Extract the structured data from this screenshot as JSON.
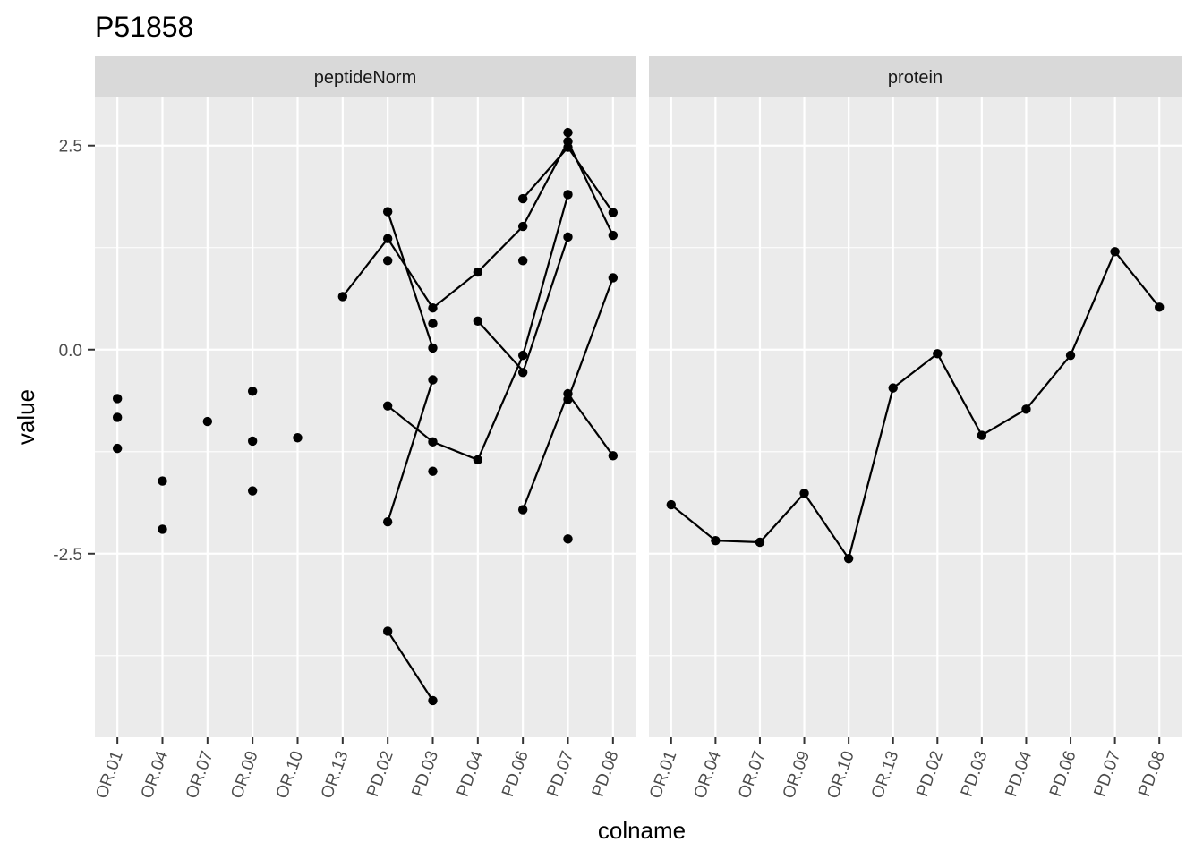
{
  "chart_data": {
    "type": "line",
    "title": "P51858",
    "xlabel": "colname",
    "ylabel": "value",
    "ylim": [
      -4.75,
      3.1
    ],
    "y_ticks": [
      -2.5,
      0.0,
      2.5
    ],
    "y_tick_labels": [
      "-2.5",
      "0.0",
      "2.5"
    ],
    "grid": true,
    "background": "#ebebeb",
    "strip_fill": "#d9d9d9",
    "mark_color": "#000000",
    "categories": [
      "OR.01",
      "OR.04",
      "OR.07",
      "OR.09",
      "OR.10",
      "OR.13",
      "PD.02",
      "PD.03",
      "PD.04",
      "PD.06",
      "PD.07",
      "PD.08"
    ],
    "panels": [
      {
        "name": "peptideNorm",
        "series": [
          {
            "values": [
              null,
              null,
              null,
              null,
              null,
              0.65,
              1.36,
              0.51,
              0.95,
              1.51,
              2.55,
              1.4
            ]
          },
          {
            "values": [
              null,
              null,
              null,
              null,
              null,
              null,
              1.69,
              0.02,
              null,
              null,
              null,
              null
            ]
          },
          {
            "values": [
              null,
              null,
              null,
              null,
              null,
              null,
              -0.69,
              -1.13,
              -1.35,
              -0.07,
              1.9,
              null
            ]
          },
          {
            "values": [
              null,
              null,
              null,
              null,
              null,
              null,
              -2.11,
              -0.37,
              null,
              null,
              null,
              null
            ]
          },
          {
            "values": [
              null,
              null,
              null,
              null,
              null,
              null,
              -3.45,
              -4.3,
              null,
              null,
              null,
              null
            ]
          },
          {
            "values": [
              null,
              null,
              null,
              null,
              null,
              null,
              null,
              null,
              0.35,
              -0.26,
              null,
              null
            ]
          },
          {
            "values": [
              null,
              null,
              null,
              null,
              null,
              null,
              null,
              null,
              null,
              1.85,
              2.48,
              1.68
            ]
          },
          {
            "values": [
              null,
              null,
              null,
              null,
              null,
              null,
              null,
              null,
              null,
              -0.28,
              1.38,
              null
            ]
          },
          {
            "values": [
              null,
              null,
              null,
              null,
              null,
              null,
              null,
              null,
              null,
              -1.96,
              -0.54,
              -1.3
            ]
          },
          {
            "values": [
              null,
              null,
              null,
              null,
              null,
              null,
              null,
              null,
              null,
              null,
              -0.61,
              0.88
            ]
          }
        ],
        "points": [
          {
            "x": "OR.01",
            "y": -0.6
          },
          {
            "x": "OR.01",
            "y": -0.83
          },
          {
            "x": "OR.01",
            "y": -1.21
          },
          {
            "x": "OR.04",
            "y": -1.61
          },
          {
            "x": "OR.04",
            "y": -2.2
          },
          {
            "x": "OR.07",
            "y": -0.88
          },
          {
            "x": "OR.09",
            "y": -0.51
          },
          {
            "x": "OR.09",
            "y": -1.12
          },
          {
            "x": "OR.09",
            "y": -1.73
          },
          {
            "x": "OR.10",
            "y": -1.08
          },
          {
            "x": "OR.13",
            "y": 0.65
          },
          {
            "x": "PD.02",
            "y": 1.69
          },
          {
            "x": "PD.02",
            "y": 1.36
          },
          {
            "x": "PD.02",
            "y": 1.09
          },
          {
            "x": "PD.02",
            "y": -0.69
          },
          {
            "x": "PD.02",
            "y": -2.11
          },
          {
            "x": "PD.02",
            "y": -3.45
          },
          {
            "x": "PD.03",
            "y": 0.51
          },
          {
            "x": "PD.03",
            "y": 0.32
          },
          {
            "x": "PD.03",
            "y": 0.02
          },
          {
            "x": "PD.03",
            "y": -0.37
          },
          {
            "x": "PD.03",
            "y": -1.13
          },
          {
            "x": "PD.03",
            "y": -1.49
          },
          {
            "x": "PD.03",
            "y": -4.3
          },
          {
            "x": "PD.04",
            "y": 0.95
          },
          {
            "x": "PD.04",
            "y": 0.35
          },
          {
            "x": "PD.04",
            "y": -1.35
          },
          {
            "x": "PD.06",
            "y": 1.85
          },
          {
            "x": "PD.06",
            "y": 1.51
          },
          {
            "x": "PD.06",
            "y": 1.09
          },
          {
            "x": "PD.06",
            "y": -0.07
          },
          {
            "x": "PD.06",
            "y": -0.28
          },
          {
            "x": "PD.06",
            "y": -1.96
          },
          {
            "x": "PD.07",
            "y": 2.66
          },
          {
            "x": "PD.07",
            "y": 2.55
          },
          {
            "x": "PD.07",
            "y": 2.48
          },
          {
            "x": "PD.07",
            "y": 1.9
          },
          {
            "x": "PD.07",
            "y": 1.38
          },
          {
            "x": "PD.07",
            "y": -0.54
          },
          {
            "x": "PD.07",
            "y": -0.61
          },
          {
            "x": "PD.07",
            "y": -2.32
          },
          {
            "x": "PD.08",
            "y": 1.68
          },
          {
            "x": "PD.08",
            "y": 1.4
          },
          {
            "x": "PD.08",
            "y": 0.88
          },
          {
            "x": "PD.08",
            "y": -1.3
          }
        ]
      },
      {
        "name": "protein",
        "series": [
          {
            "values": [
              -1.9,
              -2.34,
              -2.36,
              -1.76,
              -2.56,
              -0.47,
              -0.05,
              -1.05,
              -0.73,
              -0.07,
              1.2,
              0.52
            ]
          }
        ],
        "points": [
          {
            "x": "OR.01",
            "y": -1.9
          },
          {
            "x": "OR.04",
            "y": -2.34
          },
          {
            "x": "OR.07",
            "y": -2.36
          },
          {
            "x": "OR.09",
            "y": -1.76
          },
          {
            "x": "OR.10",
            "y": -2.56
          },
          {
            "x": "OR.13",
            "y": -0.47
          },
          {
            "x": "PD.02",
            "y": -0.05
          },
          {
            "x": "PD.03",
            "y": -1.05
          },
          {
            "x": "PD.04",
            "y": -0.73
          },
          {
            "x": "PD.06",
            "y": -0.07
          },
          {
            "x": "PD.07",
            "y": 1.2
          },
          {
            "x": "PD.08",
            "y": 0.52
          }
        ]
      }
    ]
  }
}
